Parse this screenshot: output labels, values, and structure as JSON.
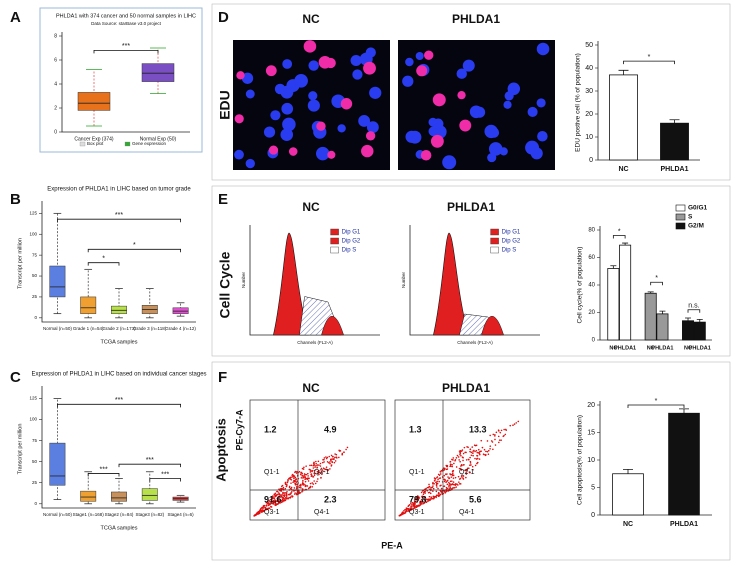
{
  "panels": [
    "A",
    "B",
    "C",
    "D",
    "E",
    "F"
  ],
  "edu": {
    "label": "EDU",
    "columns": [
      "NC",
      "PHLDA1"
    ]
  },
  "cell_cycle": {
    "label": "Cell Cycle",
    "columns": [
      "NC",
      "PHLDA1"
    ],
    "legend": [
      "Dip G1",
      "Dip G2",
      "Dip S"
    ],
    "x_label": "Channels (FL2-A)",
    "y_label": "Number"
  },
  "apoptosis": {
    "label": "Apoptosis",
    "columns": [
      "NC",
      "PHLDA1"
    ],
    "x_label": "PE-A",
    "y_label": "PE-Cy7-A",
    "quadrant_names": [
      "Q1-1",
      "Q2-1",
      "Q3-1",
      "Q4-1"
    ],
    "quadrants": [
      [
        1.2,
        4.9,
        91.6,
        2.3
      ],
      [
        1.3,
        13.3,
        79.8,
        5.6
      ]
    ]
  },
  "chart_data": [
    {
      "type": "box",
      "title": "PHLDA1 with 374 cancer and 50 normal samples in LIHC",
      "subtitle": "Data Source: starBase v3.0 project",
      "categories": [
        "Cancer Exp (374)",
        "Normal Exp (50)"
      ],
      "colors": [
        "#e8721c",
        "#7b4fc4"
      ],
      "boxes": [
        {
          "min": 0.5,
          "q1": 1.8,
          "median": 2.4,
          "q3": 3.3,
          "max": 5.2
        },
        {
          "min": 3.2,
          "q1": 4.2,
          "median": 4.9,
          "q3": 5.7,
          "max": 7
        }
      ],
      "ylim": [
        0,
        8
      ],
      "yticks": [
        0,
        2,
        4,
        6,
        8
      ],
      "legend": [
        "Box plot",
        "Gene expression"
      ],
      "annotations": [
        "***"
      ]
    },
    {
      "type": "box",
      "title": "Expression of PHLDA1 in LIHC based on tumor grade",
      "y_label": "Transcript per million",
      "x_label": "TCGA samples",
      "categories": [
        "Normal (n=50)",
        "Grade 1 (n=54)",
        "Grade 2 (n=173)",
        "Grade 3 (n=118)",
        "Grade 4 (n=12)"
      ],
      "colors": [
        "#5b7fe0",
        "#f0a030",
        "#b8e04a",
        "#c8905a",
        "#e050d0"
      ],
      "boxes": [
        {
          "min": 5,
          "q1": 25,
          "median": 37,
          "q3": 62,
          "max": 125
        },
        {
          "min": 0,
          "q1": 5,
          "median": 12,
          "q3": 25,
          "max": 58
        },
        {
          "min": 0,
          "q1": 5,
          "median": 9,
          "q3": 14,
          "max": 35
        },
        {
          "min": 0,
          "q1": 5,
          "median": 10,
          "q3": 15,
          "max": 35
        },
        {
          "min": 2,
          "q1": 5,
          "median": 8,
          "q3": 12,
          "max": 18
        }
      ],
      "ylim": [
        -5,
        135
      ],
      "yticks": [
        0,
        25,
        50,
        75,
        100,
        125
      ],
      "annotations": [
        "***",
        "*",
        "*"
      ]
    },
    {
      "type": "box",
      "title": "Expression of PHLDA1 in LIHC based on individual cancer stages",
      "y_label": "Transcript per million",
      "x_label": "TCGA samples",
      "categories": [
        "Normal (n=50)",
        "Stage1 (n=168)",
        "Stage2 (n=84)",
        "Stage3 (n=82)",
        "Stage4 (n=6)"
      ],
      "colors": [
        "#5b7fe0",
        "#f0a030",
        "#c8905a",
        "#b8e04a",
        "#e04040"
      ],
      "boxes": [
        {
          "min": 5,
          "q1": 22,
          "median": 33,
          "q3": 72,
          "max": 125
        },
        {
          "min": 0,
          "q1": 3,
          "median": 8,
          "q3": 15,
          "max": 38
        },
        {
          "min": 0,
          "q1": 3,
          "median": 7,
          "q3": 14,
          "max": 30
        },
        {
          "min": 0,
          "q1": 4,
          "median": 10,
          "q3": 18,
          "max": 38
        },
        {
          "min": 2,
          "q1": 4,
          "median": 6,
          "q3": 8,
          "max": 10
        }
      ],
      "ylim": [
        -5,
        135
      ],
      "yticks": [
        0,
        25,
        50,
        75,
        100,
        125
      ],
      "annotations": [
        "***",
        "***",
        "***",
        "***"
      ]
    },
    {
      "type": "bar",
      "y_label": "EDU postive cell (% of population)",
      "categories": [
        "NC",
        "PHLDA1"
      ],
      "values": [
        37,
        16
      ],
      "errors": [
        2,
        1.5
      ],
      "colors": [
        "#ffffff",
        "#111111"
      ],
      "ylim": [
        0,
        50
      ],
      "yticks": [
        0,
        10,
        20,
        30,
        40,
        50
      ],
      "annotations": [
        "*"
      ]
    },
    {
      "type": "grouped_bar",
      "y_label": "Cell cycle(% of population)",
      "categories": [
        "NC",
        "PHLDA1"
      ],
      "series": [
        {
          "name": "G0/G1",
          "color": "#ffffff",
          "values": [
            52,
            69
          ],
          "errors": [
            2,
            1.5
          ]
        },
        {
          "name": "S",
          "color": "#999999",
          "values": [
            34,
            19
          ],
          "errors": [
            1,
            2
          ]
        },
        {
          "name": "G2/M",
          "color": "#111111",
          "values": [
            14,
            13
          ],
          "errors": [
            2,
            2
          ]
        }
      ],
      "ylim": [
        0,
        80
      ],
      "yticks": [
        0,
        20,
        40,
        60,
        80
      ],
      "annotations": [
        "*",
        "*",
        "n.s."
      ]
    },
    {
      "type": "bar",
      "y_label": "Cell apoptosis(% of population)",
      "categories": [
        "NC",
        "PHLDA1"
      ],
      "values": [
        7.5,
        18.5
      ],
      "errors": [
        0.8,
        0.8
      ],
      "colors": [
        "#ffffff",
        "#111111"
      ],
      "ylim": [
        0,
        20
      ],
      "yticks": [
        0,
        5,
        10,
        15,
        20
      ],
      "annotations": [
        "*"
      ]
    }
  ]
}
